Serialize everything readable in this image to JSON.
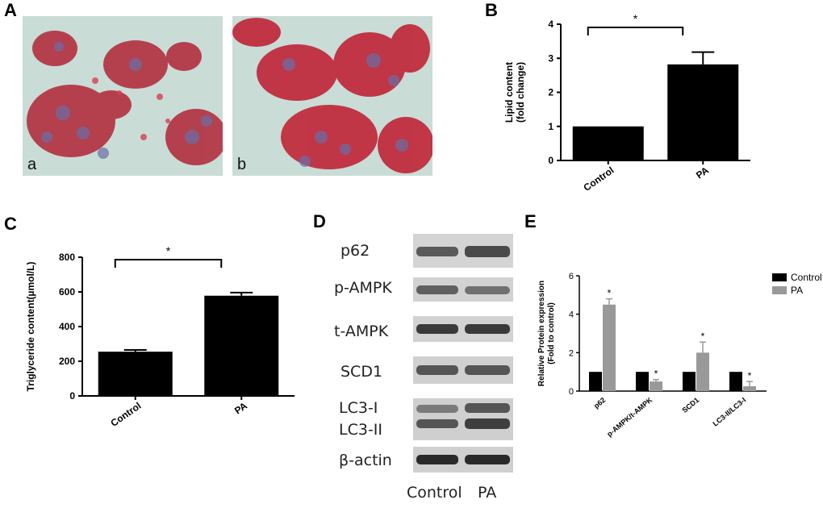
{
  "panels": {
    "A": "A",
    "B": "B",
    "C": "C",
    "D": "D",
    "E": "E"
  },
  "micrographs": {
    "left_label": "a",
    "right_label": "b"
  },
  "chart_data": [
    {
      "id": "B",
      "type": "bar",
      "categories": [
        "Control",
        "PA"
      ],
      "values": [
        1.0,
        2.82
      ],
      "errors": [
        0,
        0.36
      ],
      "ylabel": "Lipid content\n(fold change)",
      "ylim": [
        0,
        4
      ],
      "yticks": [
        0,
        1,
        2,
        3,
        4
      ],
      "significance": "*"
    },
    {
      "id": "C",
      "type": "bar",
      "categories": [
        "Control",
        "PA"
      ],
      "values": [
        255,
        578
      ],
      "errors": [
        10,
        18
      ],
      "ylabel": "Triglyceride content(µmol/L)",
      "ylim": [
        0,
        800
      ],
      "yticks": [
        0,
        200,
        400,
        600,
        800
      ],
      "significance": "*"
    },
    {
      "id": "E",
      "type": "bar",
      "categories": [
        "p62",
        "p-AMPK/t-AMPK",
        "SCD1",
        "LC3-II/LC3-I"
      ],
      "series": [
        {
          "name": "Control",
          "values": [
            1,
            1,
            1,
            1
          ],
          "errors": [
            0,
            0,
            0,
            0
          ],
          "color": "#000000"
        },
        {
          "name": "PA",
          "values": [
            4.5,
            0.5,
            2.0,
            0.25
          ],
          "errors": [
            0.3,
            0.1,
            0.55,
            0.25
          ],
          "color": "#999999"
        }
      ],
      "ylabel": "Relative Protein expression\n(Fold to control)",
      "ylim": [
        0,
        6
      ],
      "yticks": [
        0,
        2,
        4,
        6
      ],
      "significance": [
        "*",
        "*",
        "*",
        "*"
      ],
      "legend": "top-right"
    }
  ],
  "blot": {
    "rows": [
      "p62",
      "p-AMPK",
      "t-AMPK",
      "SCD1",
      "LC3-I",
      "LC3-II",
      "β-actin"
    ],
    "columns": [
      "Control",
      "PA"
    ]
  }
}
